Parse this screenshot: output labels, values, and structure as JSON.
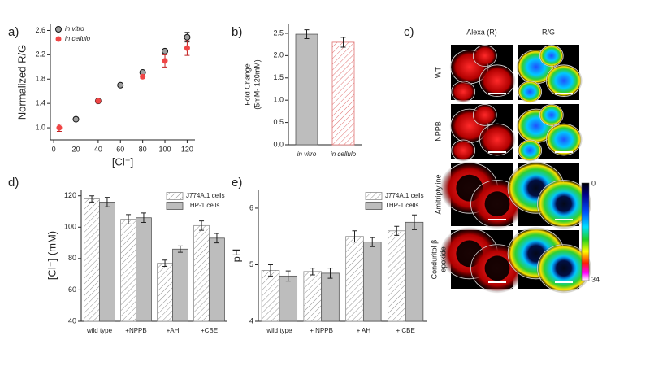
{
  "chart_data": [
    {
      "type": "scatter",
      "panel": "a)",
      "xlabel": "[Cl⁻]",
      "ylabel": "Normalized R/G",
      "xlim": [
        -3,
        127
      ],
      "xticks": [
        0,
        20,
        40,
        60,
        80,
        100,
        120
      ],
      "ylim": [
        0.8,
        2.7
      ],
      "yticks": [
        {
          "value": 1,
          "label": "1.0"
        },
        1.4,
        1.8,
        2.2,
        2.6
      ],
      "legend": "upper left",
      "series": [
        {
          "name": "in vitro",
          "color": "#a0a0a0",
          "x": [
            20,
            40,
            60,
            80,
            100,
            120
          ],
          "values": [
            1.14,
            1.44,
            1.7,
            1.91,
            2.26,
            2.49
          ],
          "errors": [
            0.02,
            0.02,
            0.02,
            0.03,
            0.03,
            0.08
          ]
        },
        {
          "name": "in cellulo",
          "color": "#f04545",
          "x": [
            5,
            40,
            80,
            100,
            120
          ],
          "values": [
            1.0,
            1.44,
            1.84,
            2.1,
            2.31
          ],
          "errors": [
            0.06,
            0.02,
            0.03,
            0.1,
            0.12
          ]
        }
      ]
    },
    {
      "type": "bar",
      "panel": "b)",
      "ylabel": [
        "Fold Change",
        "(5mM- 120mM)"
      ],
      "categories": [
        "in vitro",
        "in cellulo"
      ],
      "values": [
        2.48,
        2.3
      ],
      "errors": [
        0.1,
        0.11
      ],
      "colors": [
        "#bdbdbd",
        "#e07070"
      ],
      "hatched": [
        false,
        true
      ],
      "ylim": [
        0,
        2.7
      ],
      "yticks": [
        {
          "value": 0,
          "label": "0.0"
        },
        0.5,
        {
          "value": 1,
          "label": "1.0"
        },
        1.5,
        {
          "value": 2,
          "label": "2.0"
        },
        2.5
      ]
    },
    {
      "type": "bar",
      "panel": "d)",
      "ylabel": "[Cl⁻] (mM)",
      "legend": "upper right",
      "categories": [
        "wild type",
        "+NPPB",
        "+AH",
        "+CBE"
      ],
      "series": [
        {
          "name": "J774A.1 cells",
          "color": "#909090",
          "hatched": true,
          "values": [
            118,
            105,
            77,
            101
          ],
          "errors": [
            2,
            3,
            2,
            3
          ]
        },
        {
          "name": "THP-1 cells",
          "color": "#bdbdbd",
          "hatched": false,
          "values": [
            116,
            106,
            86,
            93
          ],
          "errors": [
            3,
            3,
            2,
            3
          ]
        }
      ],
      "ylim": [
        40,
        124
      ],
      "yticks": [
        40,
        60,
        80,
        100,
        120
      ]
    },
    {
      "type": "bar",
      "panel": "e)",
      "ylabel": "pH",
      "legend": "upper right",
      "categories": [
        "wild type",
        "+ NPPB",
        "+ AH",
        "+ CBE"
      ],
      "series": [
        {
          "name": "J774A.1 cells",
          "color": "#909090",
          "hatched": true,
          "values": [
            4.9,
            4.88,
            5.5,
            5.6
          ],
          "errors": [
            0.1,
            0.06,
            0.1,
            0.08
          ]
        },
        {
          "name": "THP-1 cells",
          "color": "#bdbdbd",
          "hatched": false,
          "values": [
            4.8,
            4.85,
            5.4,
            5.75
          ],
          "errors": [
            0.09,
            0.09,
            0.08,
            0.13
          ]
        }
      ],
      "ylim": [
        4,
        6.33
      ],
      "yticks": [
        4,
        5,
        6
      ]
    }
  ],
  "image_panel": {
    "panel": "c)",
    "columns": [
      "Alexa (R)",
      "R/G"
    ],
    "rows": [
      [
        "WT"
      ],
      [
        "NPPB"
      ],
      [
        "Amitriptyline"
      ],
      [
        "Conduritol β",
        "epoxide"
      ]
    ],
    "colorbar": {
      "min": 0,
      "max": 34
    }
  }
}
